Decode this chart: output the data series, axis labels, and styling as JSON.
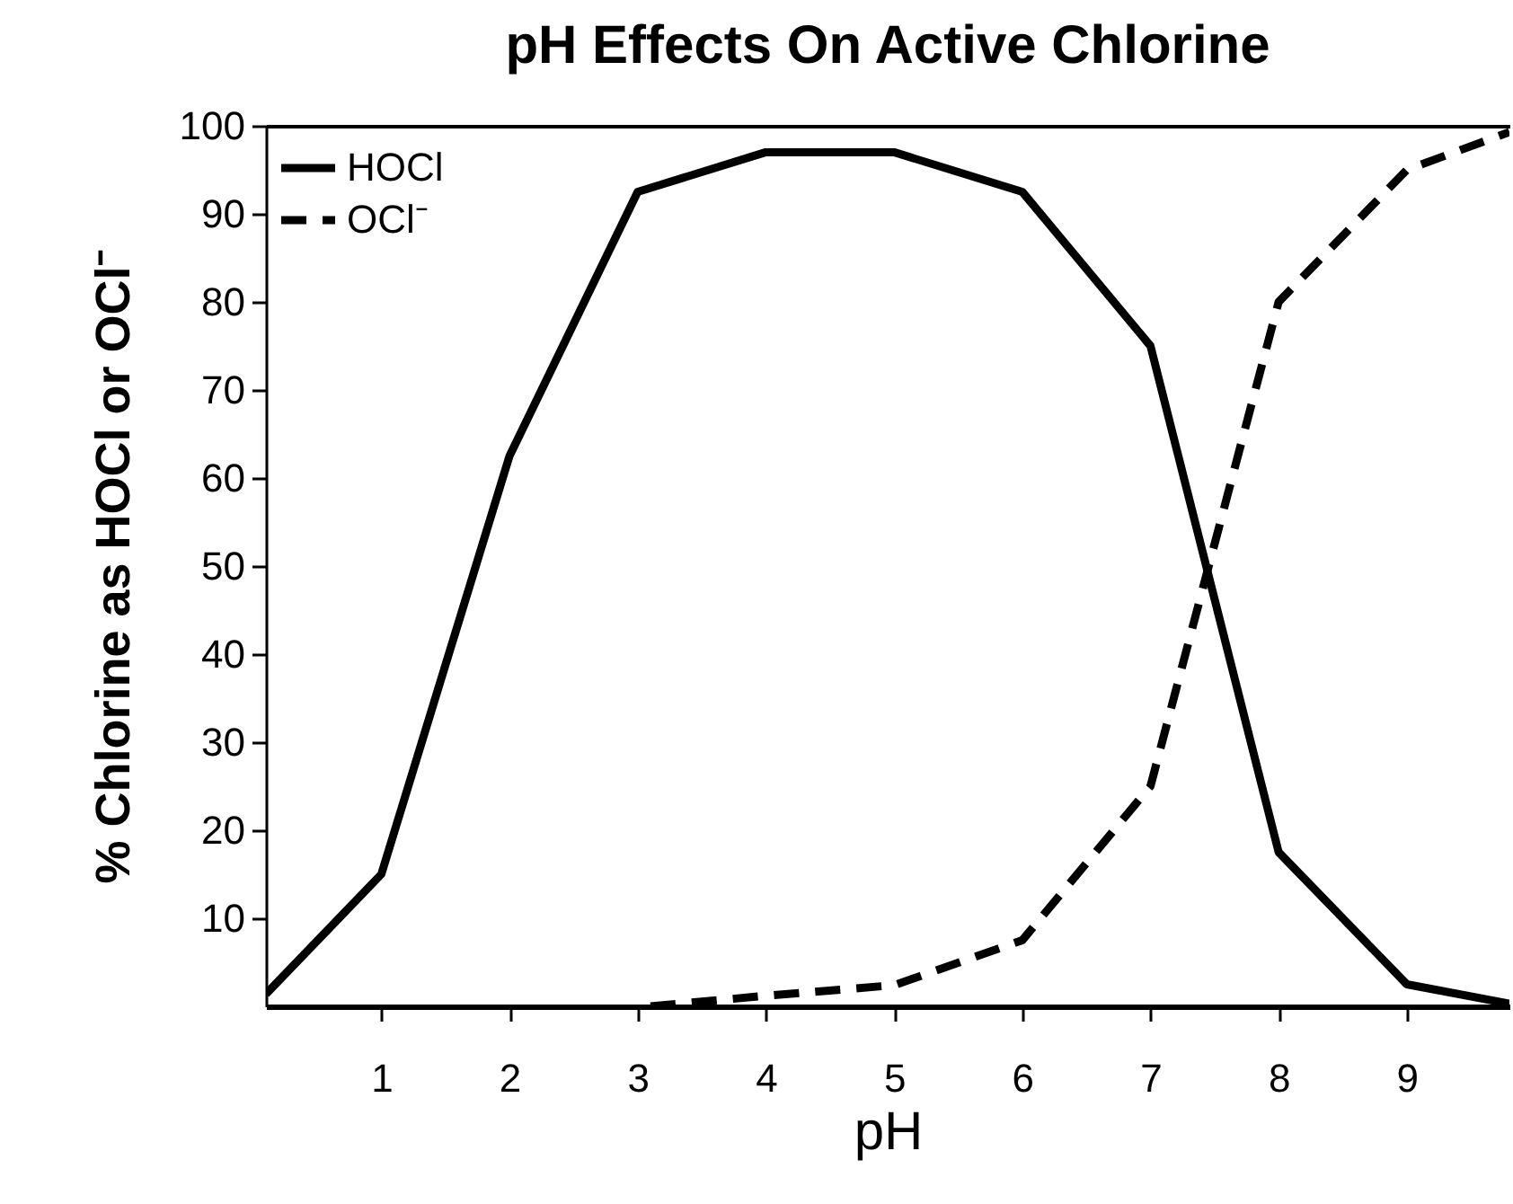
{
  "chart_data": {
    "type": "line",
    "title": "pH Effects On Active Chlorine",
    "xlabel": "pH",
    "ylabel": "% Chlorine as HOCl or OCl⁻",
    "xlim": [
      0.1,
      9.8
    ],
    "xticks": [
      1,
      2,
      3,
      4,
      5,
      6,
      7,
      8,
      9
    ],
    "ylim": [
      0,
      100
    ],
    "yticks": [
      10,
      20,
      30,
      40,
      50,
      60,
      70,
      80,
      90,
      100
    ],
    "grid": false,
    "legend": "top left",
    "marker": "none",
    "series": [
      {
        "name": "HOCl",
        "color": "#000000",
        "line_style": "solid",
        "x": [
          0.1,
          1,
          2,
          3,
          4,
          5,
          6,
          7,
          8,
          9,
          9.8
        ],
        "values": [
          1.4,
          15,
          62.5,
          92.5,
          97,
          97,
          92.5,
          75,
          17.5,
          2.5,
          0.3
        ]
      },
      {
        "name": "OCl⁻",
        "color": "#000000",
        "line_style": "dashed",
        "x": [
          3.1,
          4,
          5,
          6,
          7,
          8,
          9,
          9.8
        ],
        "values": [
          0,
          1.2,
          2.4,
          7.5,
          25,
          80,
          95,
          99.3
        ]
      }
    ]
  }
}
